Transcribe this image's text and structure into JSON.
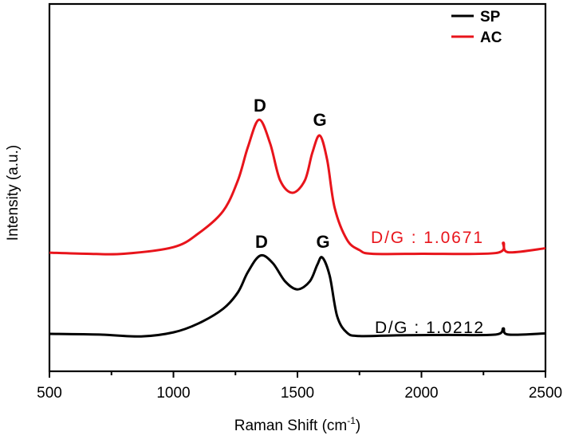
{
  "chart_data": {
    "type": "line",
    "title": "",
    "xlabel": "Raman Shift (cm",
    "xlabel_sup": "-1",
    "xlabel_end": ")",
    "ylabel": "Intensity (a.u.)",
    "xlim": [
      500,
      2500
    ],
    "ylim": [
      0,
      100
    ],
    "xticks": [
      500,
      1000,
      1500,
      2000,
      2500
    ],
    "xtick_labels": [
      "500",
      "1000",
      "1500",
      "2000",
      "2500"
    ],
    "minor_xticks": [
      750,
      1250,
      1750,
      2250
    ],
    "legend": {
      "position": "top-right",
      "entries": [
        "SP",
        "AC"
      ]
    },
    "series": [
      {
        "name": "SP",
        "color": "#000000",
        "x": [
          500,
          700,
          870,
          1000,
          1100,
          1200,
          1260,
          1300,
          1350,
          1400,
          1450,
          1500,
          1550,
          1580,
          1600,
          1630,
          1660,
          1700,
          1750,
          1900,
          2100,
          2300,
          2330,
          2350,
          2500
        ],
        "y": [
          10.2,
          10.0,
          9.5,
          10.6,
          13.0,
          17.0,
          21.5,
          27.0,
          31.5,
          29.5,
          24.5,
          22.3,
          24.5,
          29.0,
          31.0,
          26.0,
          15.0,
          10.5,
          9.6,
          9.8,
          9.9,
          10.0,
          11.7,
          10.0,
          10.3
        ]
      },
      {
        "name": "AC",
        "color": "#e8141b",
        "x": [
          500,
          650,
          800,
          1000,
          1100,
          1200,
          1260,
          1300,
          1345,
          1390,
          1430,
          1480,
          1530,
          1560,
          1590,
          1620,
          1650,
          1700,
          1750,
          1800,
          2000,
          2300,
          2330,
          2350,
          2500
        ],
        "y": [
          32.3,
          32.0,
          32.0,
          33.8,
          37.5,
          43.6,
          52.0,
          61.0,
          68.5,
          62.0,
          52.0,
          48.6,
          52.0,
          59.5,
          64.2,
          57.5,
          44.5,
          35.8,
          33.0,
          32.0,
          32.0,
          32.2,
          35.0,
          32.4,
          33.5
        ]
      }
    ],
    "annotations": [
      {
        "text": "D",
        "series": "AC",
        "x": 1345
      },
      {
        "text": "G",
        "series": "AC",
        "x": 1590
      },
      {
        "text": "D",
        "series": "SP",
        "x": 1350
      },
      {
        "text": "G",
        "series": "SP",
        "x": 1600
      },
      {
        "text": "D/G : 1.0671",
        "series": "AC"
      },
      {
        "text": "D/G : 1.0212",
        "series": "SP"
      }
    ]
  }
}
